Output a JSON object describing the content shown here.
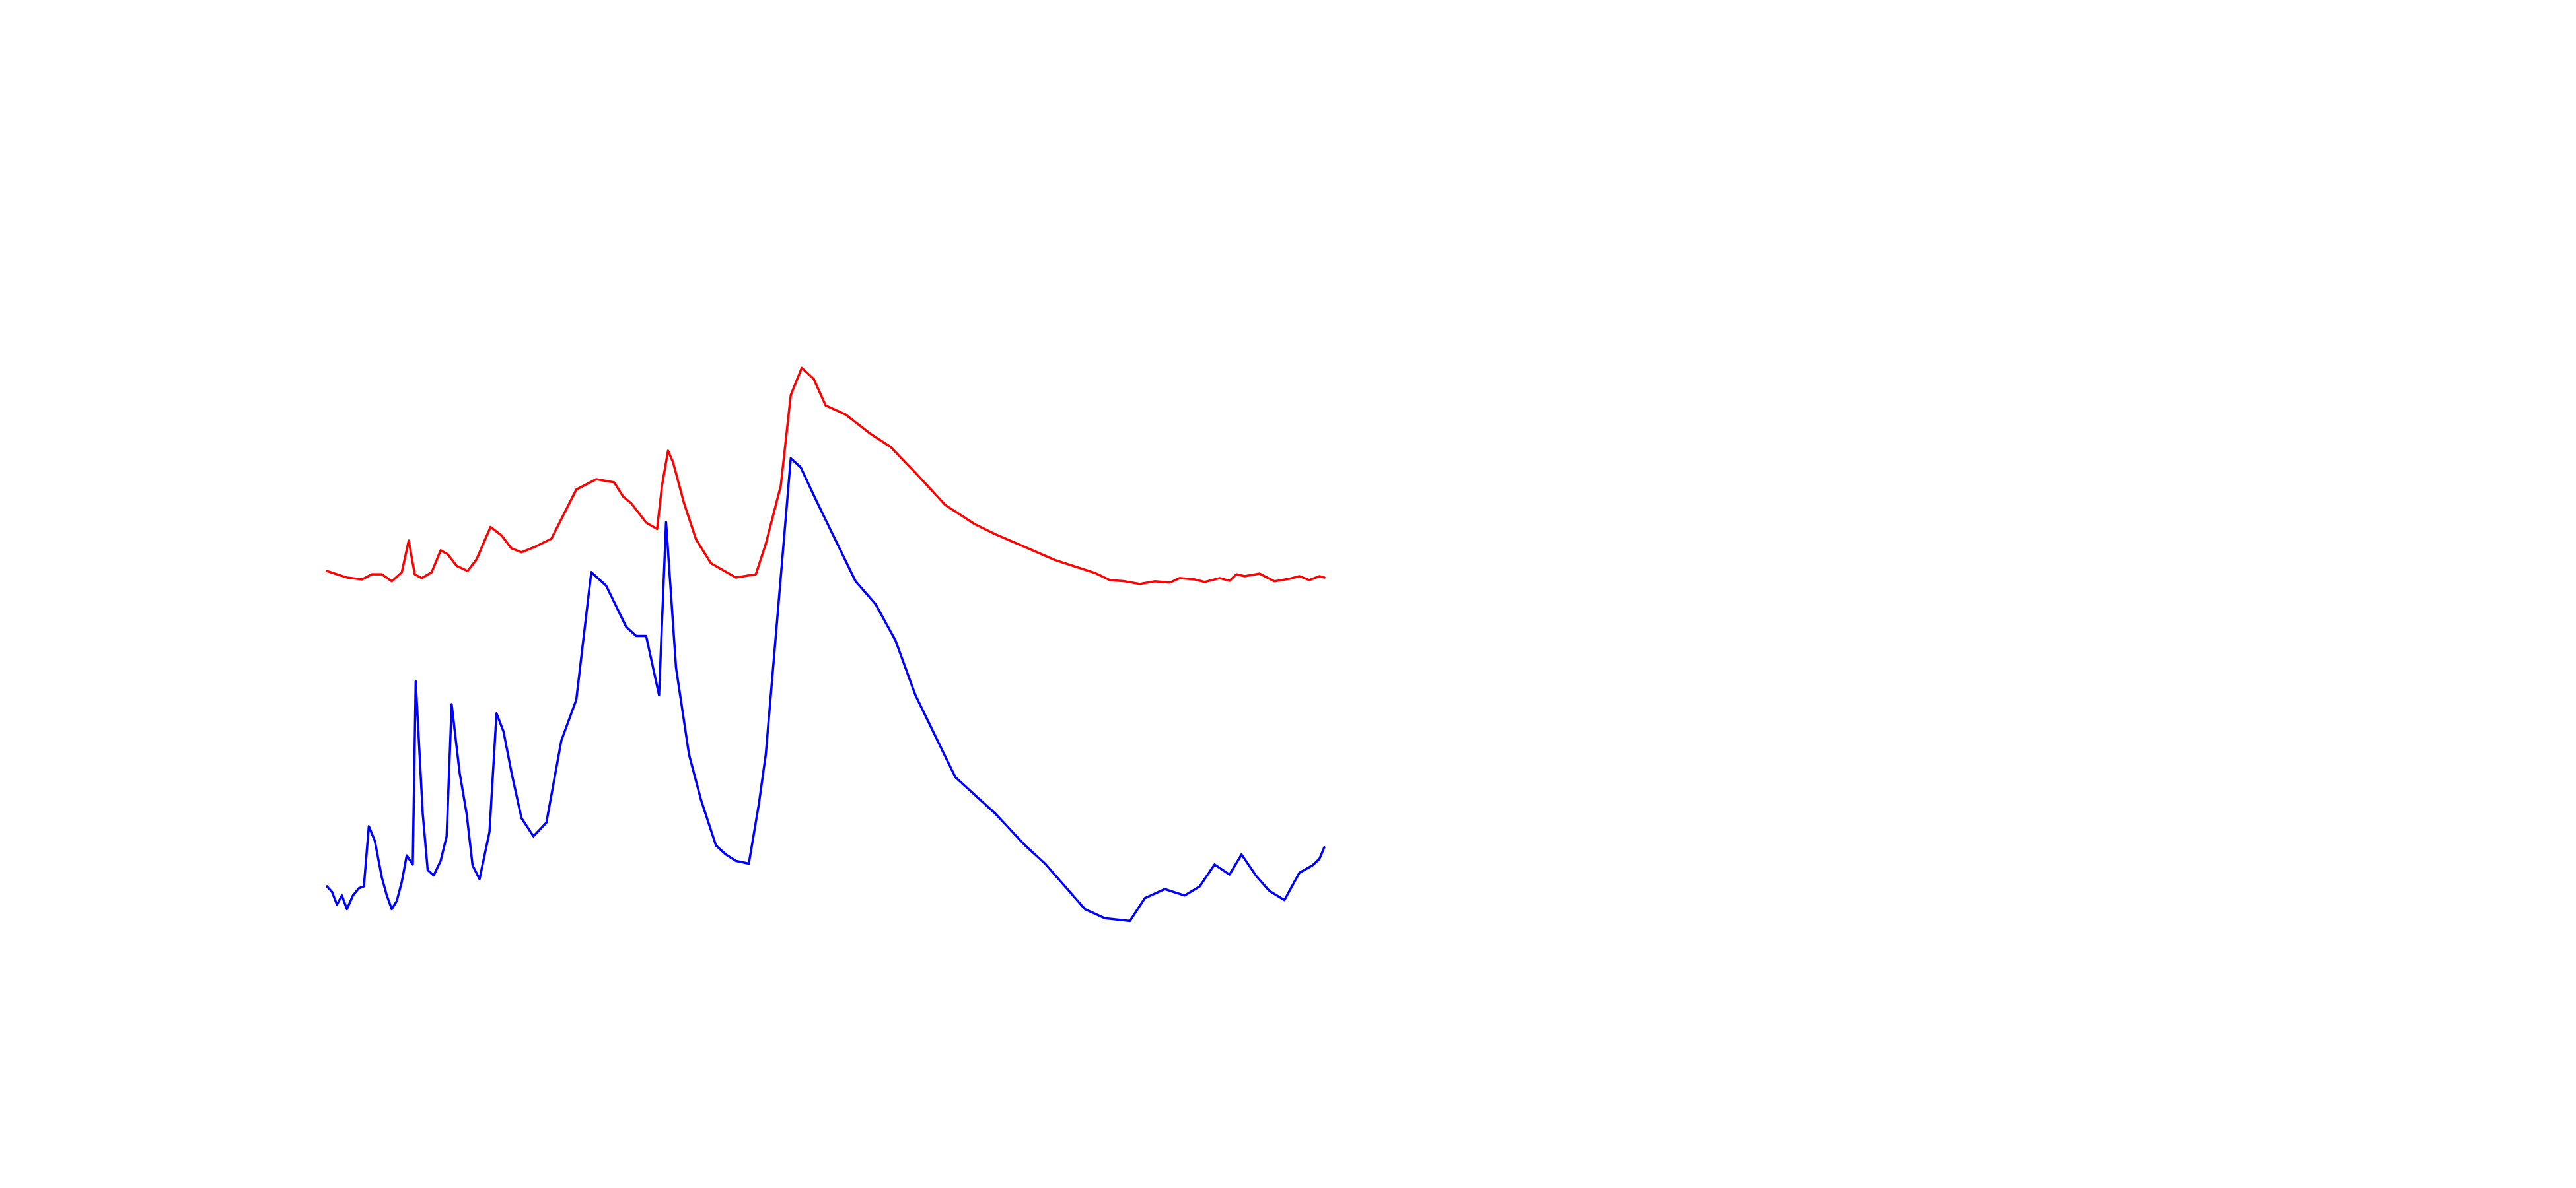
{
  "chart_data": {
    "type": "line",
    "title": "",
    "xlabel": "",
    "ylabel": "",
    "grid": false,
    "axes_visible": false,
    "legend": "none",
    "xlim": [
      0,
      100
    ],
    "ylim": [
      0,
      100
    ],
    "series": [
      {
        "color": "#ff0000",
        "points": [
          [
            0,
            0.8
          ],
          [
            2,
            -0.2
          ],
          [
            3.5,
            -0.5
          ],
          [
            4.5,
            0.3
          ],
          [
            5.5,
            0.3
          ],
          [
            6.5,
            -0.8
          ],
          [
            7.5,
            0.6
          ],
          [
            8.2,
            5.5
          ],
          [
            8.8,
            0.3
          ],
          [
            9.5,
            -0.3
          ],
          [
            10.5,
            0.6
          ],
          [
            11.4,
            4.0
          ],
          [
            12.1,
            3.4
          ],
          [
            13,
            1.6
          ],
          [
            14.1,
            0.8
          ],
          [
            15,
            2.6
          ],
          [
            16.4,
            7.6
          ],
          [
            17.5,
            6.3
          ],
          [
            18.5,
            4.3
          ],
          [
            19.5,
            3.7
          ],
          [
            20.8,
            4.5
          ],
          [
            22.5,
            5.8
          ],
          [
            25,
            13.4
          ],
          [
            27,
            15.0
          ],
          [
            28.8,
            14.5
          ],
          [
            29.7,
            12.3
          ],
          [
            30.5,
            11.3
          ],
          [
            32,
            8.3
          ],
          [
            33.1,
            7.3
          ],
          [
            33.6,
            14.1
          ],
          [
            34.2,
            19.4
          ],
          [
            34.7,
            17.6
          ],
          [
            35.8,
            11.3
          ],
          [
            37,
            5.7
          ],
          [
            38.5,
            2.0
          ],
          [
            41,
            -0.2
          ],
          [
            43,
            0.3
          ],
          [
            44,
            5.0
          ],
          [
            45.5,
            14.0
          ],
          [
            46.5,
            28.0
          ],
          [
            47.6,
            32.2
          ],
          [
            48.8,
            30.5
          ],
          [
            50,
            26.4
          ],
          [
            52,
            25.0
          ],
          [
            54.5,
            22.0
          ],
          [
            56.5,
            20.0
          ],
          [
            59,
            16.0
          ],
          [
            62,
            11.0
          ],
          [
            65,
            8.0
          ],
          [
            67,
            6.5
          ],
          [
            70,
            4.5
          ],
          [
            73,
            2.5
          ],
          [
            75,
            1.5
          ],
          [
            77,
            0.5
          ],
          [
            78.5,
            -0.6
          ],
          [
            80,
            -0.8
          ],
          [
            81.5,
            -1.2
          ],
          [
            83,
            -0.8
          ],
          [
            84.5,
            -1.0
          ],
          [
            85.5,
            -0.3
          ],
          [
            87,
            -0.5
          ],
          [
            88,
            -0.9
          ],
          [
            89.5,
            -0.3
          ],
          [
            90.5,
            -0.7
          ],
          [
            91.2,
            0.3
          ],
          [
            92,
            0
          ],
          [
            93.5,
            0.4
          ],
          [
            95,
            -0.8
          ],
          [
            96.5,
            -0.4
          ],
          [
            97.5,
            0
          ],
          [
            98.5,
            -0.6
          ],
          [
            99.5,
            0
          ],
          [
            100,
            -0.2
          ]
        ]
      },
      {
        "color": "#0000ff",
        "points": [
          [
            0,
            0
          ],
          [
            0.5,
            -0.6
          ],
          [
            1,
            -2.0
          ],
          [
            1.5,
            -1.0
          ],
          [
            2,
            -2.5
          ],
          [
            2.6,
            -1.0
          ],
          [
            3.2,
            -0.2
          ],
          [
            3.7,
            0
          ],
          [
            4.2,
            6.6
          ],
          [
            4.8,
            5.0
          ],
          [
            5.5,
            1.0
          ],
          [
            6,
            -1.0
          ],
          [
            6.5,
            -2.5
          ],
          [
            7,
            -1.6
          ],
          [
            7.5,
            0.5
          ],
          [
            8,
            3.4
          ],
          [
            8.6,
            2.4
          ],
          [
            8.9,
            22.5
          ],
          [
            9.6,
            8.0
          ],
          [
            10.1,
            1.8
          ],
          [
            10.7,
            1.2
          ],
          [
            11.4,
            2.8
          ],
          [
            12,
            5.5
          ],
          [
            12.5,
            20.0
          ],
          [
            13.3,
            12.5
          ],
          [
            14,
            8.0
          ],
          [
            14.6,
            2.3
          ],
          [
            15.3,
            0.8
          ],
          [
            16.3,
            6.0
          ],
          [
            17,
            19.0
          ],
          [
            17.7,
            17.0
          ],
          [
            18.5,
            12.5
          ],
          [
            19.5,
            7.5
          ],
          [
            20.7,
            5.5
          ],
          [
            22,
            7.0
          ],
          [
            23.5,
            16.0
          ],
          [
            25,
            20.5
          ],
          [
            26.5,
            34.5
          ],
          [
            28,
            33.0
          ],
          [
            30,
            28.5
          ],
          [
            31,
            27.5
          ],
          [
            32,
            27.5
          ],
          [
            33.3,
            21.0
          ],
          [
            34,
            40.0
          ],
          [
            35,
            24.0
          ],
          [
            36.3,
            14.5
          ],
          [
            37.5,
            9.5
          ],
          [
            39,
            4.5
          ],
          [
            40,
            3.5
          ],
          [
            41,
            2.8
          ],
          [
            42.3,
            2.5
          ],
          [
            43.3,
            9.0
          ],
          [
            44,
            14.5
          ],
          [
            45.5,
            34.0
          ],
          [
            46.5,
            47.0
          ],
          [
            47.5,
            46.0
          ],
          [
            49,
            42.5
          ],
          [
            51,
            38.0
          ],
          [
            53,
            33.5
          ],
          [
            55,
            31.0
          ],
          [
            57,
            27.0
          ],
          [
            59,
            21.0
          ],
          [
            61,
            16.5
          ],
          [
            63,
            12.0
          ],
          [
            65,
            10.0
          ],
          [
            67,
            8.0
          ],
          [
            70,
            4.5
          ],
          [
            72,
            2.5
          ],
          [
            74,
            0
          ],
          [
            76,
            -2.5
          ],
          [
            78,
            -3.5
          ],
          [
            80.5,
            -3.8
          ],
          [
            82,
            -1.3
          ],
          [
            84,
            -0.3
          ],
          [
            86,
            -1.0
          ],
          [
            87.5,
            0
          ],
          [
            89,
            2.4
          ],
          [
            90.5,
            1.3
          ],
          [
            91.7,
            3.5
          ],
          [
            93.2,
            1.1
          ],
          [
            94.5,
            -0.5
          ],
          [
            96,
            -1.5
          ],
          [
            97.5,
            1.5
          ],
          [
            98.8,
            2.3
          ],
          [
            99.5,
            3.0
          ],
          [
            100,
            4.3
          ]
        ]
      }
    ]
  }
}
